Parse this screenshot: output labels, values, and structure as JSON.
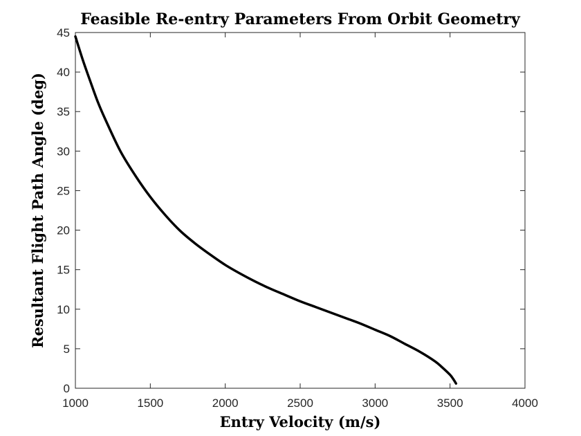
{
  "chart_data": {
    "type": "line",
    "title": "Feasible Re-entry Parameters From Orbit Geometry",
    "xlabel": "Entry Velocity (m/s)",
    "ylabel": "Resultant Flight Path Angle (deg)",
    "xlim": [
      1000,
      4000
    ],
    "ylim": [
      0,
      45
    ],
    "xticks": [
      "1000",
      "1500",
      "2000",
      "2500",
      "3000",
      "3500",
      "4000"
    ],
    "yticks": [
      "0",
      "5",
      "10",
      "15",
      "20",
      "25",
      "30",
      "35",
      "40",
      "45"
    ],
    "grid": false,
    "series": [
      {
        "color": "#000000",
        "x": [
          1000,
          1050,
          1100,
          1150,
          1200,
          1300,
          1400,
          1500,
          1600,
          1700,
          1800,
          1900,
          2000,
          2100,
          2200,
          2300,
          2400,
          2500,
          2600,
          2700,
          2800,
          2900,
          3000,
          3100,
          3200,
          3300,
          3400,
          3450,
          3500,
          3520,
          3540
        ],
        "y": [
          44.5,
          41.5,
          38.8,
          36.2,
          34.0,
          30.0,
          26.9,
          24.2,
          21.9,
          19.9,
          18.3,
          16.9,
          15.6,
          14.5,
          13.5,
          12.6,
          11.8,
          11.0,
          10.3,
          9.6,
          8.9,
          8.2,
          7.4,
          6.6,
          5.6,
          4.6,
          3.4,
          2.6,
          1.7,
          1.2,
          0.6
        ]
      }
    ]
  }
}
